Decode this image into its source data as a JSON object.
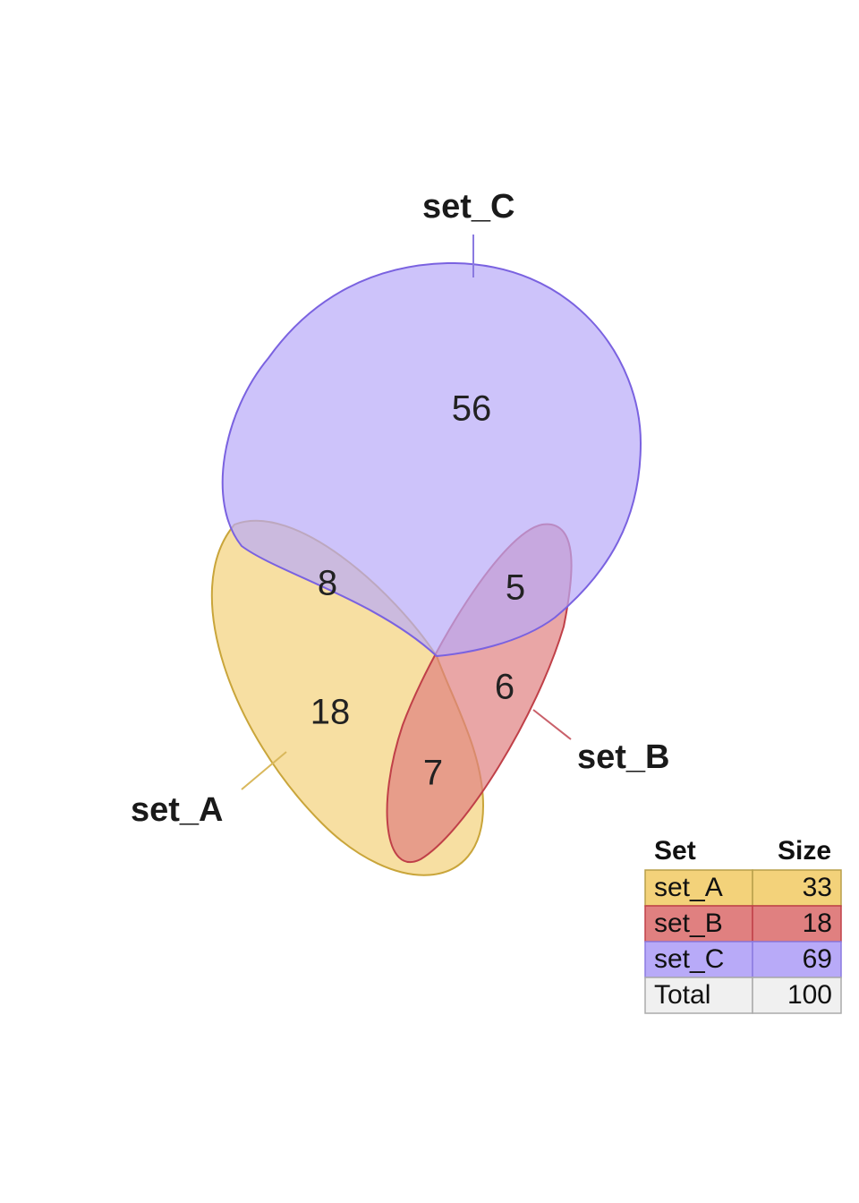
{
  "chart_data": {
    "type": "venn",
    "sets": [
      {
        "key": "A",
        "name": "set_A",
        "size": 33,
        "color": "#f3d27a",
        "stroke": "#c9a53a"
      },
      {
        "key": "B",
        "name": "set_B",
        "size": 18,
        "color": "#e08080",
        "stroke": "#c04048"
      },
      {
        "key": "C",
        "name": "set_C",
        "size": 69,
        "color": "#b8aaf8",
        "stroke": "#7a62e0"
      }
    ],
    "regions": [
      {
        "sets": "C only",
        "count": 56
      },
      {
        "sets": "A and C",
        "count": 8
      },
      {
        "sets": "B and C",
        "count": 5
      },
      {
        "sets": "A only",
        "count": 18
      },
      {
        "sets": "B only",
        "count": 6
      },
      {
        "sets": "A and B",
        "count": 7
      }
    ],
    "table": {
      "headers": [
        "Set",
        "Size"
      ],
      "rows": [
        {
          "label": "set_A",
          "value": "33",
          "color": "#f3d27a"
        },
        {
          "label": "set_B",
          "value": "18",
          "color": "#e08080"
        },
        {
          "label": "set_C",
          "value": "69",
          "color": "#b8aaf8"
        },
        {
          "label": "Total",
          "value": "100",
          "color": "#f0f0f0"
        }
      ]
    }
  }
}
